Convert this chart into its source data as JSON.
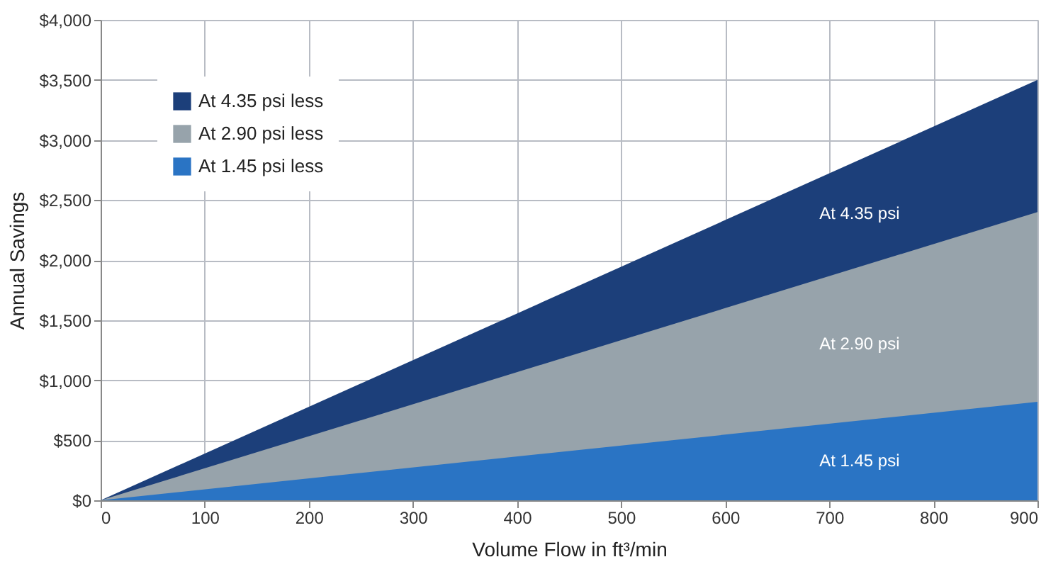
{
  "chart_data": {
    "type": "area",
    "xlabel": "Volume Flow in ft³/min",
    "ylabel": "Annual Savings",
    "x": [
      0,
      900
    ],
    "series": [
      {
        "name": "At 4.35 psi less",
        "color": "#1c3f7a",
        "values": [
          0,
          3500
        ]
      },
      {
        "name": "At 2.90 psi less",
        "color": "#97a3ab",
        "values": [
          0,
          2400
        ]
      },
      {
        "name": "At 1.45 psi less",
        "color": "#2a74c4",
        "values": [
          0,
          820
        ]
      }
    ],
    "xlim": [
      0,
      900
    ],
    "xticks": [
      0,
      100,
      200,
      300,
      400,
      500,
      600,
      700,
      800,
      900
    ],
    "ylim": [
      0,
      4000
    ],
    "yticks": [
      {
        "value": 0,
        "label": "$0"
      },
      {
        "value": 500,
        "label": "$500"
      },
      {
        "value": 1000,
        "label": "$1,000"
      },
      {
        "value": 1500,
        "label": "$1,500"
      },
      {
        "value": 2000,
        "label": "$2,000"
      },
      {
        "value": 2500,
        "label": "$2,500"
      },
      {
        "value": 3000,
        "label": "$3,000"
      },
      {
        "value": 3500,
        "label": "$3,500"
      },
      {
        "value": 4000,
        "label": "$4,000"
      }
    ],
    "annotations": [
      "At 4.35 psi",
      "At 2.90 psi",
      "At 1.45 psi"
    ],
    "grid": true,
    "legend": "top left"
  }
}
